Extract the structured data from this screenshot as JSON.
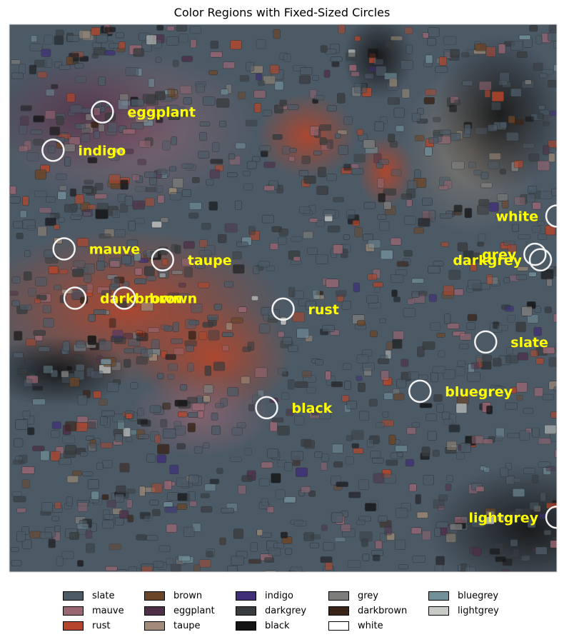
{
  "chart_data": {
    "type": "scatter",
    "title": "Color Regions with Fixed-Sized Circles",
    "xlabel": "",
    "ylabel": "",
    "grid": false,
    "axes_visible": false,
    "xlim": [
      0,
      1
    ],
    "ylim": [
      0,
      1
    ],
    "background_image": "tiled-mosaic-texture",
    "marker": "open-circle",
    "label_color": "#ffff00",
    "points": [
      {
        "label": "eggplant",
        "x": 0.17,
        "y": 0.84
      },
      {
        "label": "indigo",
        "x": 0.08,
        "y": 0.77
      },
      {
        "label": "white",
        "x": 1.0,
        "y": 0.65
      },
      {
        "label": "grey",
        "x": 0.96,
        "y": 0.58
      },
      {
        "label": "darkgrey",
        "x": 0.97,
        "y": 0.57
      },
      {
        "label": "mauve",
        "x": 0.1,
        "y": 0.59
      },
      {
        "label": "taupe",
        "x": 0.28,
        "y": 0.57
      },
      {
        "label": "darkbrown",
        "x": 0.12,
        "y": 0.5
      },
      {
        "label": "brown",
        "x": 0.21,
        "y": 0.5
      },
      {
        "label": "rust",
        "x": 0.5,
        "y": 0.48
      },
      {
        "label": "slate",
        "x": 0.87,
        "y": 0.42
      },
      {
        "label": "bluegrey",
        "x": 0.75,
        "y": 0.33
      },
      {
        "label": "black",
        "x": 0.47,
        "y": 0.3
      },
      {
        "label": "lightgrey",
        "x": 1.0,
        "y": 0.1
      }
    ],
    "legend": {
      "placement": "bottom",
      "ncol": 5,
      "entries": [
        {
          "label": "slate",
          "color": "#4c5a66"
        },
        {
          "label": "mauve",
          "color": "#9a6672"
        },
        {
          "label": "rust",
          "color": "#b5452a"
        },
        {
          "label": "brown",
          "color": "#6b4528"
        },
        {
          "label": "eggplant",
          "color": "#4e2f48"
        },
        {
          "label": "taupe",
          "color": "#a08c78"
        },
        {
          "label": "indigo",
          "color": "#3f2f78"
        },
        {
          "label": "darkgrey",
          "color": "#383c3e"
        },
        {
          "label": "black",
          "color": "#141414"
        },
        {
          "label": "grey",
          "color": "#7d7d7b"
        },
        {
          "label": "darkbrown",
          "color": "#3a2418"
        },
        {
          "label": "white",
          "color": "#ffffff"
        },
        {
          "label": "bluegrey",
          "color": "#72909a"
        },
        {
          "label": "lightgrey",
          "color": "#c9cbc6"
        }
      ]
    }
  }
}
